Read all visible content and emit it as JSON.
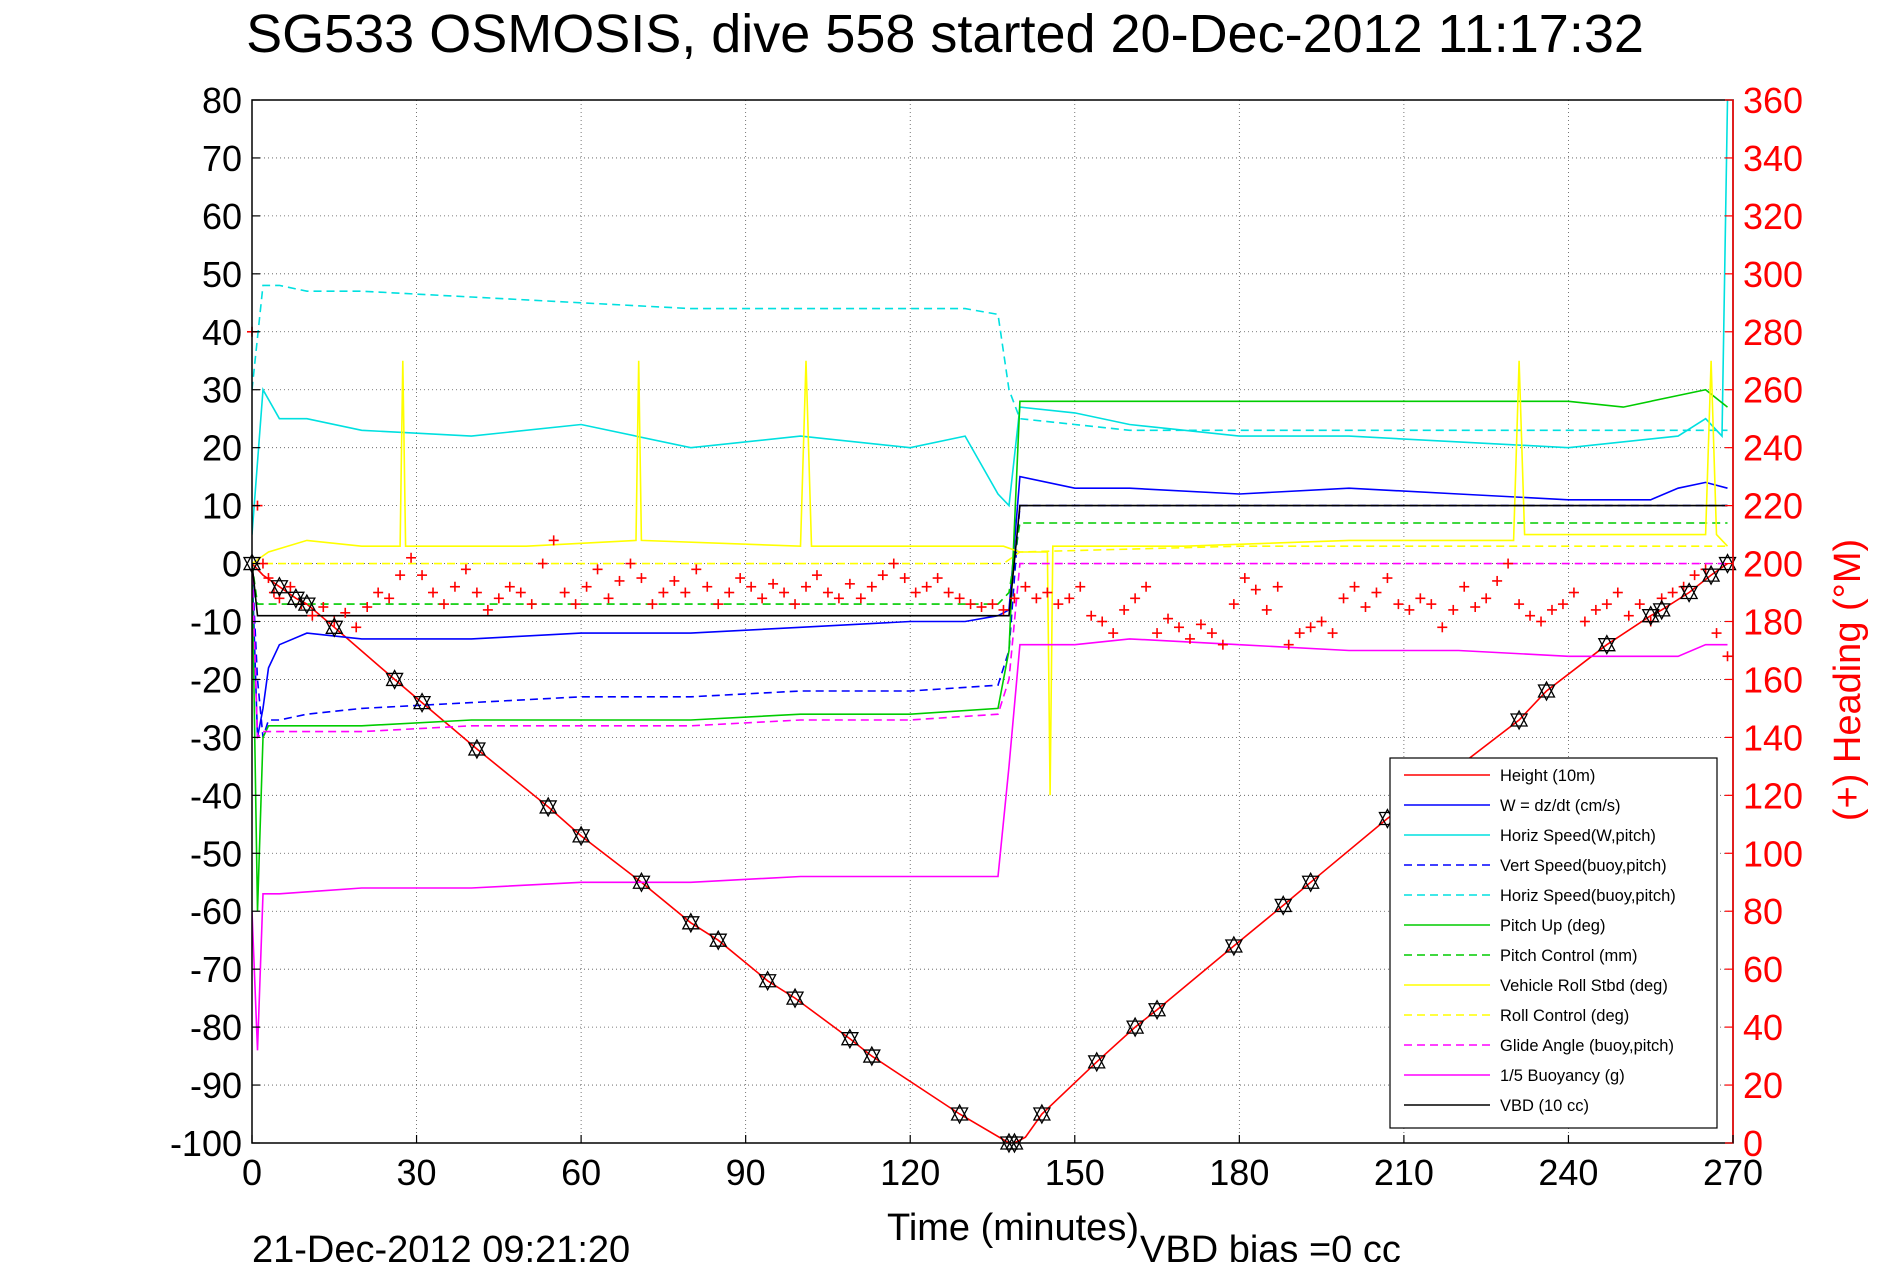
{
  "chart_data": {
    "type": "line",
    "title": "SG533 OSMOSIS, dive 558 started 20-Dec-2012 11:17:32",
    "xlabel": "Time (minutes)",
    "ylabel_right": "(+) Heading (°M)",
    "footer_left": "21-Dec-2012 09:21:20",
    "footer_right": "VBD bias =0 cc",
    "xlim": [
      0,
      270
    ],
    "ylim": [
      -100,
      80
    ],
    "ylim_right": [
      0,
      360
    ],
    "x_ticks": [
      0,
      30,
      60,
      90,
      120,
      150,
      180,
      210,
      240,
      270
    ],
    "y_ticks": [
      80,
      70,
      60,
      50,
      40,
      30,
      20,
      10,
      0,
      -10,
      -20,
      -30,
      -40,
      -50,
      -60,
      -70,
      -80,
      -90,
      -100
    ],
    "y_ticks_right": [
      360,
      340,
      320,
      300,
      280,
      260,
      240,
      220,
      200,
      180,
      160,
      140,
      120,
      100,
      80,
      60,
      40,
      20,
      0
    ],
    "grid": true,
    "legend_position": "bottom-right",
    "colors": {
      "right_axis": "#ff0000",
      "axis": "#000000"
    },
    "series": [
      {
        "name": "Height (10m)",
        "color": "#ff0000",
        "dash": "solid",
        "x": [
          0,
          2,
          5,
          8,
          10,
          15,
          26,
          31,
          41,
          54,
          60,
          71,
          80,
          85,
          94,
          99,
          109,
          113,
          129,
          138,
          139,
          141,
          144,
          154,
          161,
          165,
          179,
          188,
          193,
          207,
          220,
          231,
          236,
          247,
          255,
          257,
          262,
          266,
          269
        ],
        "y": [
          0,
          -2,
          -4,
          -6,
          -7,
          -11,
          -20,
          -24,
          -32,
          -42,
          -47,
          -55,
          -62,
          -65,
          -72,
          -75,
          -82,
          -85,
          -95,
          -100,
          -100,
          -99,
          -95,
          -86,
          -80,
          -77,
          -66,
          -59,
          -55,
          -44,
          -35,
          -27,
          -22,
          -14,
          -9,
          -8,
          -5,
          -2,
          0
        ]
      },
      {
        "name": "W = dz/dt (cm/s)",
        "color": "#0000ff",
        "dash": "solid",
        "x": [
          0,
          1,
          2,
          3,
          5,
          10,
          20,
          40,
          60,
          80,
          100,
          120,
          130,
          136,
          138,
          140,
          150,
          160,
          180,
          200,
          220,
          240,
          255,
          260,
          265,
          269
        ],
        "y": [
          0,
          -30,
          -25,
          -18,
          -14,
          -12,
          -13,
          -13,
          -12,
          -12,
          -11,
          -10,
          -10,
          -9,
          -8,
          15,
          13,
          13,
          12,
          13,
          12,
          11,
          11,
          13,
          14,
          13
        ]
      },
      {
        "name": "Horiz Speed(W,pitch)",
        "color": "#00e0e0",
        "dash": "solid",
        "x": [
          0,
          2,
          5,
          10,
          20,
          40,
          60,
          80,
          100,
          120,
          130,
          136,
          138,
          140,
          150,
          160,
          180,
          200,
          220,
          240,
          260,
          265,
          268,
          269
        ],
        "y": [
          5,
          30,
          25,
          25,
          23,
          22,
          24,
          20,
          22,
          20,
          22,
          12,
          10,
          27,
          26,
          24,
          22,
          22,
          21,
          20,
          22,
          25,
          22,
          80
        ]
      },
      {
        "name": "Vert Speed(buoy,pitch)",
        "color": "#0000ff",
        "dash": "dashed",
        "x": [
          0,
          1,
          2,
          3,
          5,
          10,
          20,
          40,
          60,
          80,
          100,
          120,
          136,
          138,
          140,
          150,
          180,
          210,
          240,
          269
        ],
        "y": [
          0,
          -20,
          -30,
          -27,
          -27,
          -26,
          -25,
          -24,
          -23,
          -23,
          -22,
          -22,
          -21,
          -15,
          10,
          10,
          10,
          10,
          10,
          10
        ]
      },
      {
        "name": "Horiz Speed(buoy,pitch)",
        "color": "#00e0e0",
        "dash": "dashed",
        "x": [
          0,
          2,
          5,
          10,
          20,
          40,
          60,
          80,
          100,
          120,
          130,
          136,
          138,
          140,
          150,
          160,
          180,
          210,
          240,
          269
        ],
        "y": [
          30,
          48,
          48,
          47,
          47,
          46,
          45,
          44,
          44,
          44,
          44,
          43,
          30,
          25,
          24,
          23,
          23,
          23,
          23,
          23
        ]
      },
      {
        "name": "Pitch Up (deg)",
        "color": "#00cc00",
        "dash": "solid",
        "x": [
          0,
          1,
          2,
          3,
          5,
          10,
          20,
          40,
          60,
          80,
          100,
          120,
          136,
          138,
          140,
          150,
          160,
          180,
          200,
          220,
          240,
          250,
          260,
          265,
          269
        ],
        "y": [
          0,
          -60,
          -30,
          -28,
          -28,
          -28,
          -28,
          -27,
          -27,
          -27,
          -26,
          -26,
          -25,
          -15,
          28,
          28,
          28,
          28,
          28,
          28,
          28,
          27,
          29,
          30,
          27
        ]
      },
      {
        "name": "Pitch Control (mm)",
        "color": "#00cc00",
        "dash": "dashed",
        "x": [
          0,
          1,
          5,
          40,
          80,
          120,
          136,
          138,
          140,
          180,
          220,
          269
        ],
        "y": [
          0,
          -7,
          -7,
          -7,
          -7,
          -7,
          -7,
          -5,
          7,
          7,
          7,
          7
        ]
      },
      {
        "name": "Vehicle Roll Stbd (deg)",
        "color": "#ffff00",
        "dash": "solid",
        "x": [
          0,
          3,
          10,
          20,
          27,
          27.5,
          28,
          50,
          70,
          70.5,
          71,
          100,
          101,
          102,
          137,
          140,
          145,
          145.5,
          146,
          170,
          200,
          230,
          231,
          232,
          265,
          266,
          267,
          269
        ],
        "y": [
          0,
          2,
          4,
          3,
          3,
          35,
          3,
          3,
          4,
          35,
          4,
          3,
          35,
          3,
          3,
          2,
          2,
          -40,
          3,
          3,
          4,
          4,
          35,
          5,
          5,
          35,
          5,
          3
        ]
      },
      {
        "name": "Roll Control (deg)",
        "color": "#ffff00",
        "dash": "dashed",
        "x": [
          0,
          5,
          60,
          120,
          137,
          140,
          180,
          220,
          269
        ],
        "y": [
          0,
          0,
          0,
          0,
          0,
          2,
          3,
          3,
          3
        ]
      },
      {
        "name": "Glide Angle (buoy,pitch)",
        "color": "#ff00ff",
        "dash": "dashed",
        "x": [
          0,
          1,
          2,
          5,
          10,
          20,
          40,
          60,
          80,
          100,
          120,
          136,
          138,
          140,
          180,
          220,
          269
        ],
        "y": [
          0,
          -30,
          -29,
          -29,
          -29,
          -29,
          -28,
          -28,
          -28,
          -27,
          -27,
          -26,
          -20,
          0,
          0,
          0,
          0
        ]
      },
      {
        "name": "1/5 Buoyancy (g)",
        "color": "#ff00ff",
        "dash": "solid",
        "x": [
          0,
          1,
          2,
          5,
          20,
          40,
          60,
          80,
          100,
          120,
          135,
          136,
          138,
          140,
          150,
          160,
          180,
          200,
          220,
          240,
          260,
          265,
          269
        ],
        "y": [
          -60,
          -84,
          -57,
          -57,
          -56,
          -56,
          -55,
          -55,
          -54,
          -54,
          -54,
          -54,
          -35,
          -14,
          -14,
          -13,
          -14,
          -15,
          -15,
          -16,
          -16,
          -14,
          -14
        ]
      },
      {
        "name": "VBD (10 cc)",
        "color": "#000000",
        "dash": "solid",
        "x": [
          0,
          1,
          2,
          5,
          40,
          80,
          120,
          136,
          138,
          140,
          150,
          200,
          269
        ],
        "y": [
          0,
          -9,
          -9,
          -9,
          -9,
          -9,
          -9,
          -9,
          -9,
          10,
          10,
          10,
          10
        ]
      }
    ],
    "heading": {
      "name": "(+) Heading (°M)",
      "color": "#ff0000",
      "marker": "+",
      "x": [
        0,
        1,
        2,
        3,
        4,
        5,
        7,
        9,
        11,
        13,
        15,
        17,
        19,
        21,
        23,
        25,
        27,
        29,
        31,
        33,
        35,
        37,
        39,
        41,
        43,
        45,
        47,
        49,
        51,
        53,
        55,
        57,
        59,
        61,
        63,
        65,
        67,
        69,
        71,
        73,
        75,
        77,
        79,
        81,
        83,
        85,
        87,
        89,
        91,
        93,
        95,
        97,
        99,
        101,
        103,
        105,
        107,
        109,
        111,
        113,
        115,
        117,
        119,
        121,
        123,
        125,
        127,
        129,
        131,
        133,
        135,
        137,
        139,
        141,
        143,
        145,
        147,
        149,
        151,
        153,
        155,
        157,
        159,
        161,
        163,
        165,
        167,
        169,
        171,
        173,
        175,
        177,
        179,
        181,
        183,
        185,
        187,
        189,
        191,
        193,
        195,
        197,
        199,
        201,
        203,
        205,
        207,
        209,
        211,
        213,
        215,
        217,
        219,
        221,
        223,
        225,
        227,
        229,
        231,
        233,
        235,
        237,
        239,
        241,
        243,
        245,
        247,
        249,
        251,
        253,
        255,
        257,
        259,
        261,
        263,
        265,
        267,
        269
      ],
      "y": [
        280,
        220,
        200,
        195,
        190,
        188,
        192,
        186,
        182,
        185,
        180,
        183,
        178,
        185,
        190,
        188,
        196,
        202,
        196,
        190,
        186,
        192,
        198,
        190,
        184,
        188,
        192,
        190,
        186,
        200,
        208,
        190,
        186,
        192,
        198,
        188,
        194,
        200,
        195,
        186,
        190,
        194,
        190,
        198,
        192,
        186,
        190,
        195,
        192,
        188,
        193,
        190,
        186,
        192,
        196,
        190,
        188,
        193,
        188,
        192,
        196,
        200,
        195,
        190,
        192,
        195,
        190,
        188,
        186,
        185,
        186,
        184,
        188,
        192,
        188,
        190,
        186,
        188,
        192,
        182,
        180,
        176,
        184,
        188,
        192,
        176,
        181,
        178,
        174,
        179,
        176,
        172,
        186,
        195,
        191,
        184,
        192,
        172,
        176,
        178,
        180,
        176,
        188,
        192,
        185,
        190,
        195,
        186,
        184,
        188,
        186,
        178,
        184,
        192,
        185,
        188,
        194,
        200,
        186,
        182,
        180,
        184,
        186,
        190,
        180,
        184,
        186,
        190,
        182,
        186,
        180,
        188,
        190,
        192,
        196,
        198,
        176,
        168
      ]
    },
    "markers": {
      "name": "cast markers",
      "x": [
        0,
        5,
        8,
        10,
        15,
        26,
        31,
        41,
        54,
        60,
        71,
        80,
        85,
        94,
        99,
        109,
        113,
        129,
        138,
        139,
        144,
        154,
        161,
        165,
        179,
        188,
        193,
        207,
        231,
        236,
        247,
        255,
        257,
        262,
        266,
        269
      ],
      "y": [
        0,
        -4,
        -6,
        -7,
        -11,
        -20,
        -24,
        -32,
        -42,
        -47,
        -55,
        -62,
        -65,
        -72,
        -75,
        -82,
        -85,
        -95,
        -100,
        -100,
        -95,
        -86,
        -80,
        -77,
        -66,
        -59,
        -55,
        -44,
        -27,
        -22,
        -14,
        -9,
        -8,
        -5,
        -2,
        0
      ]
    }
  }
}
